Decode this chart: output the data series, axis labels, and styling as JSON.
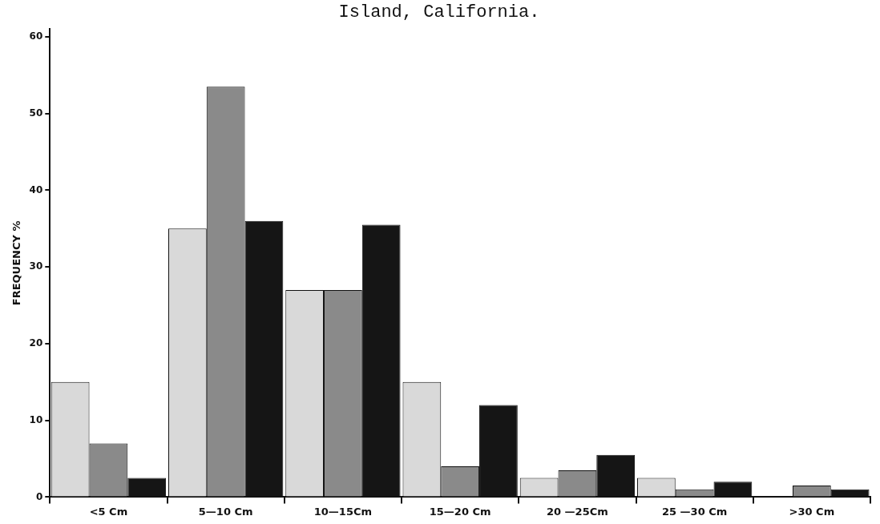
{
  "chart_data": {
    "type": "bar",
    "title": "Island, California.",
    "ylabel": "FREQUENCY %",
    "categories": [
      "<5 Cm",
      "5—10 Cm",
      "10—15Cm",
      "15—20 Cm",
      "20 —25Cm",
      "25 —30 Cm",
      ">30 Cm"
    ],
    "series": [
      {
        "color": "#d9d9d9",
        "values": [
          15,
          35,
          27,
          15,
          2.5,
          2.5,
          0
        ]
      },
      {
        "color": "#8a8a8a",
        "values": [
          7,
          53.5,
          27,
          4,
          3.5,
          1,
          1.5
        ]
      },
      {
        "color": "#151515",
        "values": [
          2.5,
          36,
          35.5,
          12,
          5.5,
          2,
          1
        ]
      }
    ],
    "ylim": [
      0,
      61
    ],
    "yticks": [
      0,
      10,
      20,
      30,
      40,
      50,
      60
    ],
    "grid": false,
    "legend": false
  }
}
